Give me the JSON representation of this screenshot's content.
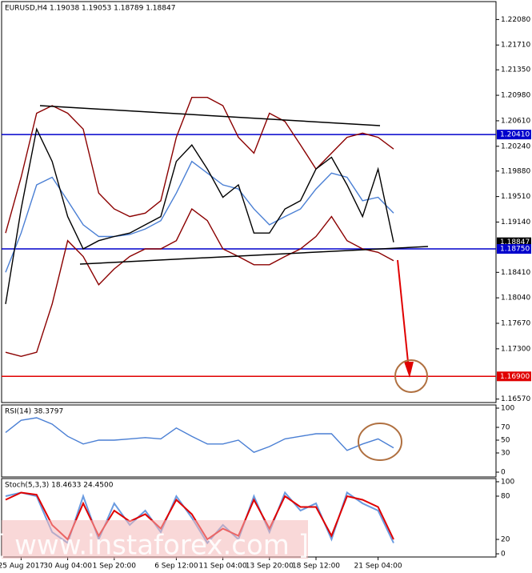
{
  "chart_data": [
    {
      "type": "line",
      "title": "EURUSD,H4 1.19038 1.19053 1.18789 1.18847",
      "categories": [
        null,
        "25 Aug 2017",
        null,
        null,
        "30 Aug 04:00",
        null,
        null,
        "1 Sep 20:00",
        null,
        null,
        null,
        "6 Sep 12:00",
        null,
        null,
        "11 Sep 04:00",
        null,
        null,
        "13 Sep 20:00",
        null,
        null,
        "18 Sep 12:00",
        null,
        null,
        null,
        "21 Sep 04:00",
        null
      ],
      "ylim": [
        1.1652,
        1.2234
      ],
      "yticks": [
        {
          "value": 1.2208,
          "label": "1.22080"
        },
        {
          "value": 1.2171,
          "label": "1.21710"
        },
        {
          "value": 1.2135,
          "label": "1.21350"
        },
        {
          "value": 1.2098,
          "label": "1.20980"
        },
        {
          "value": 1.2061,
          "label": "1.20610"
        },
        {
          "value": 1.2024,
          "label": "1.20240"
        },
        {
          "value": 1.1988,
          "label": "1.19880"
        },
        {
          "value": 1.1951,
          "label": "1.19510"
        },
        {
          "value": 1.1914,
          "label": "1.19140"
        },
        {
          "value": 1.1841,
          "label": "1.18410"
        },
        {
          "value": 1.1804,
          "label": "1.18040"
        },
        {
          "value": 1.1767,
          "label": "1.17670"
        },
        {
          "value": 1.173,
          "label": "1.17300"
        },
        {
          "value": 1.1657,
          "label": "1.16570"
        }
      ],
      "levels": [
        {
          "value": 1.2041,
          "label": "1.20410",
          "color": "#0000cc"
        },
        {
          "value": 1.18847,
          "label": "1.18847",
          "color": "#000000"
        },
        {
          "value": 1.1875,
          "label": "1.18750",
          "color": "#0000cc"
        },
        {
          "value": 1.169,
          "label": "1.16900",
          "color": "#e00000"
        }
      ],
      "series": [
        {
          "color": "#8b0000",
          "values": [
            1.1898,
            1.1979,
            1.2072,
            1.2083,
            1.2072,
            1.2049,
            1.1956,
            1.1933,
            1.1922,
            1.1927,
            1.1945,
            1.2037,
            1.2095,
            1.2095,
            1.2083,
            1.2037,
            1.2014,
            1.2072,
            1.206,
            1.2026,
            1.1991,
            1.2014,
            1.2037,
            1.2043,
            1.2037,
            1.202
          ]
        },
        {
          "color": "#8b0000",
          "values": [
            1.1725,
            1.1719,
            1.1725,
            1.1795,
            1.1887,
            1.1864,
            1.1823,
            1.1846,
            1.1864,
            1.1875,
            1.1875,
            1.1887,
            1.1933,
            1.1916,
            1.1875,
            1.1864,
            1.1852,
            1.1852,
            1.1864,
            1.1875,
            1.1893,
            1.1922,
            1.1887,
            1.1875,
            1.187,
            1.1858
          ]
        },
        {
          "color": "#4a7fd4",
          "values": [
            1.1841,
            1.1898,
            1.1968,
            1.1979,
            1.1945,
            1.191,
            1.1893,
            1.1893,
            1.1896,
            1.1904,
            1.1916,
            1.1956,
            1.2002,
            1.1985,
            1.1968,
            1.1962,
            1.1933,
            1.191,
            1.1922,
            1.1933,
            1.1962,
            1.1985,
            1.1979,
            1.1945,
            1.195,
            1.1927
          ]
        },
        {
          "color": "#000000",
          "values": [
            1.1795,
            1.1933,
            1.2049,
            1.2002,
            1.1922,
            1.1875,
            1.1887,
            1.1893,
            1.1898,
            1.191,
            1.1922,
            1.2002,
            1.2026,
            1.1991,
            1.195,
            1.1968,
            1.1898,
            1.1898,
            1.1933,
            1.1945,
            1.1991,
            1.2008,
            1.1968,
            1.1922,
            1.1991,
            1.18847
          ]
        }
      ]
    },
    {
      "type": "line",
      "title": "RSI(14) 38.3797",
      "ylim": [
        -7.5,
        105
      ],
      "yticks": [
        100,
        70,
        50,
        30,
        0
      ],
      "series": [
        {
          "color": "#4a7fd4",
          "values": [
            62,
            81,
            85,
            75,
            56,
            44,
            50,
            50,
            52,
            54,
            52,
            69,
            56,
            44,
            44,
            50,
            31,
            40,
            52,
            56,
            60,
            60,
            34,
            44,
            52,
            38
          ]
        }
      ]
    },
    {
      "type": "line",
      "title": "Stoch(5,3,3) 18.4633 24.4500",
      "ylim": [
        -4.4,
        104.4
      ],
      "yticks": [
        100,
        80,
        20,
        0
      ],
      "series": [
        {
          "color": "#6a9be0",
          "values": [
            80,
            85,
            80,
            30,
            15,
            80,
            20,
            70,
            40,
            60,
            30,
            80,
            50,
            15,
            40,
            20,
            80,
            30,
            85,
            60,
            70,
            20,
            85,
            70,
            60,
            15
          ]
        },
        {
          "color": "#e00000",
          "values": [
            75,
            85,
            82,
            40,
            20,
            70,
            25,
            60,
            45,
            55,
            35,
            75,
            55,
            20,
            35,
            25,
            75,
            35,
            80,
            65,
            65,
            25,
            80,
            75,
            65,
            20
          ]
        }
      ]
    }
  ],
  "watermark": "[ www.instaforex.com ]"
}
